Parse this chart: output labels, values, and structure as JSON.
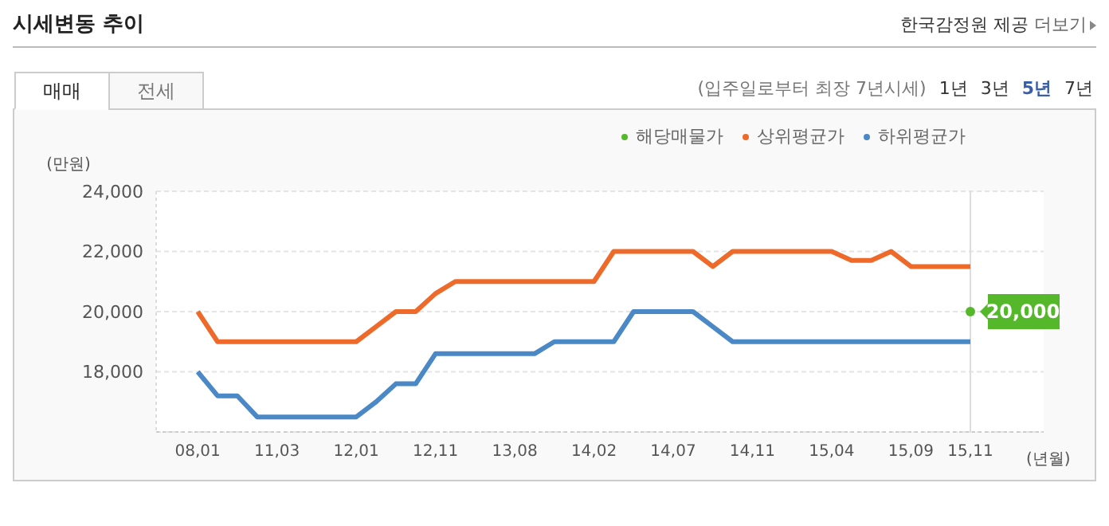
{
  "chart_data": {
    "type": "line",
    "title": "시세변동 추이",
    "annotations": [
      "한국감정원 제공",
      "더보기",
      "매매",
      "전세",
      "(입주일로부터 최장 7년시세)",
      "1년",
      "3년",
      "5년",
      "7년"
    ],
    "xlabel": "(년월)",
    "ylabel": "(만원)",
    "categories": [
      "08,01",
      null,
      null,
      null,
      "11,03",
      null,
      null,
      null,
      "12,01",
      null,
      null,
      null,
      "12,11",
      null,
      null,
      null,
      "13,08",
      null,
      null,
      null,
      "14,02",
      null,
      null,
      null,
      "14,07",
      null,
      null,
      null,
      "14,11",
      null,
      null,
      null,
      "15,04",
      null,
      null,
      null,
      "15,09",
      null,
      null,
      "15,11"
    ],
    "series": [
      {
        "name": "해당매물가",
        "color": "#55b82a",
        "marker": "circle",
        "values": [
          null,
          null,
          null,
          null,
          null,
          null,
          null,
          null,
          null,
          null,
          null,
          null,
          null,
          null,
          null,
          null,
          null,
          null,
          null,
          null,
          null,
          null,
          null,
          null,
          null,
          null,
          null,
          null,
          null,
          null,
          null,
          null,
          null,
          null,
          null,
          null,
          null,
          null,
          null,
          20000
        ],
        "value_labels": [
          null,
          null,
          null,
          null,
          null,
          null,
          null,
          null,
          null,
          null,
          null,
          null,
          null,
          null,
          null,
          null,
          null,
          null,
          null,
          null,
          null,
          null,
          null,
          null,
          null,
          null,
          null,
          null,
          null,
          null,
          null,
          null,
          null,
          null,
          null,
          null,
          null,
          null,
          null,
          "20,000"
        ]
      },
      {
        "name": "상위평균가",
        "color": "#ee6a2a",
        "values": [
          20000,
          19000,
          19000,
          19000,
          19000,
          19000,
          19000,
          19000,
          19000,
          19500,
          20000,
          20000,
          20600,
          21000,
          21000,
          21000,
          21000,
          21000,
          21000,
          21000,
          21000,
          22000,
          22000,
          22000,
          22000,
          22000,
          21500,
          22000,
          22000,
          22000,
          22000,
          22000,
          22000,
          21700,
          21700,
          22000,
          21500,
          21500,
          21500,
          21500
        ]
      },
      {
        "name": "하위평균가",
        "color": "#4a88c6",
        "values": [
          18000,
          17200,
          17200,
          16500,
          16500,
          16500,
          16500,
          16500,
          16500,
          17000,
          17600,
          17600,
          18600,
          18600,
          18600,
          18600,
          18600,
          18600,
          19000,
          19000,
          19000,
          19000,
          20000,
          20000,
          20000,
          20000,
          19500,
          19000,
          19000,
          19000,
          19000,
          19000,
          19000,
          19000,
          19000,
          19000,
          19000,
          19000,
          19000,
          19000
        ]
      }
    ],
    "ylim": [
      16000,
      24000
    ],
    "yticks": [
      {
        "value": 18000,
        "label": "18,000"
      },
      {
        "value": 20000,
        "label": "20,000"
      },
      {
        "value": 22000,
        "label": "22,000"
      },
      {
        "value": 24000,
        "label": "24,000"
      }
    ],
    "ref_lines": [
      {
        "axis": "x",
        "value": "15,11",
        "color": "#dddddd"
      }
    ],
    "grid": "y",
    "legend": "top right",
    "marker": "none",
    "line_style": "solid"
  }
}
